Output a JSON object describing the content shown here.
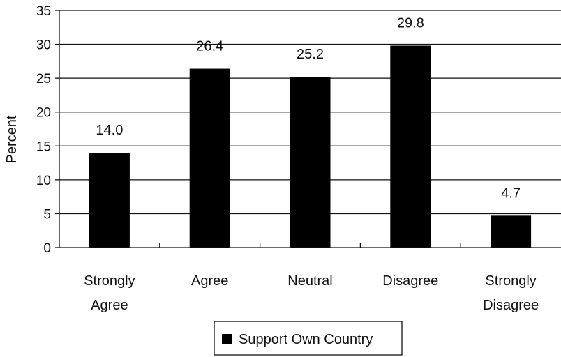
{
  "chart_data": {
    "type": "bar",
    "categories": [
      [
        "Strongly",
        "Agree"
      ],
      [
        "Agree"
      ],
      [
        "Neutral"
      ],
      [
        "Disagree"
      ],
      [
        "Strongly",
        "Disagree"
      ]
    ],
    "series": [
      {
        "name": "Support Own Country",
        "values": [
          14.0,
          26.4,
          25.2,
          29.8,
          4.7
        ],
        "labels": [
          "14.0",
          "26.4",
          "25.2",
          "29.8",
          "4.7"
        ],
        "color": "#000000"
      }
    ],
    "ylabel": "Percent",
    "xlabel": "",
    "title": "",
    "ylim": [
      0,
      35
    ],
    "yticks": [
      0,
      5,
      10,
      15,
      20,
      25,
      30,
      35
    ],
    "grid": true,
    "legend": "bottom-center"
  }
}
